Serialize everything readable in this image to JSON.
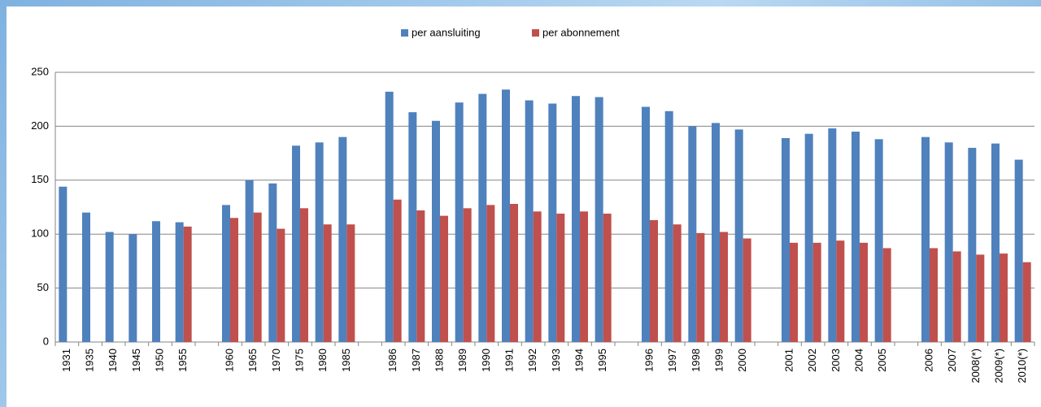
{
  "chart_data": {
    "type": "bar",
    "categories": [
      "1931",
      "1935",
      "1940",
      "1945",
      "1950",
      "1955",
      null,
      "1960",
      "1965",
      "1970",
      "1975",
      "1980",
      "1985",
      null,
      "1986",
      "1987",
      "1988",
      "1989",
      "1990",
      "1991",
      "1992",
      "1993",
      "1994",
      "1995",
      null,
      "1996",
      "1997",
      "1998",
      "1999",
      "2000",
      null,
      "2001",
      "2002",
      "2003",
      "2004",
      "2005",
      null,
      "2006",
      "2007",
      "2008(*)",
      "2009(*)",
      "2010(*)"
    ],
    "series": [
      {
        "name": "per aansluiting",
        "color": "#4f81bd",
        "values": [
          144,
          120,
          102,
          100,
          112,
          111,
          null,
          127,
          150,
          147,
          182,
          185,
          190,
          null,
          232,
          213,
          205,
          222,
          230,
          234,
          224,
          221,
          228,
          227,
          null,
          218,
          214,
          200,
          203,
          197,
          null,
          189,
          193,
          198,
          195,
          188,
          null,
          190,
          185,
          180,
          184,
          169
        ]
      },
      {
        "name": "per abonnement",
        "color": "#c0504d",
        "values": [
          null,
          null,
          null,
          null,
          null,
          107,
          null,
          115,
          120,
          105,
          124,
          109,
          109,
          null,
          132,
          122,
          117,
          124,
          127,
          128,
          121,
          119,
          121,
          119,
          null,
          113,
          109,
          101,
          102,
          96,
          null,
          92,
          92,
          94,
          92,
          87,
          null,
          87,
          84,
          81,
          82,
          74
        ]
      }
    ],
    "ylim": [
      0,
      250
    ],
    "yticks": [
      0,
      50,
      100,
      150,
      200,
      250
    ],
    "grid": true,
    "legend": "top"
  }
}
